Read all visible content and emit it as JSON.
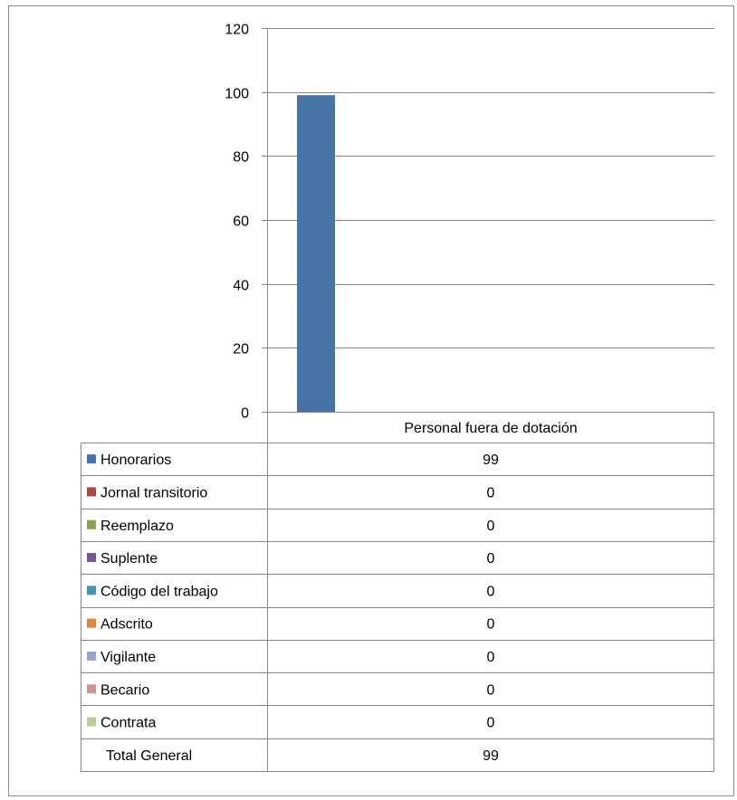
{
  "chart_data": {
    "type": "bar",
    "categories": [
      "Personal fuera de dotación"
    ],
    "series": [
      {
        "name": "Honorarios",
        "values": [
          99
        ],
        "color": "#4572A7"
      },
      {
        "name": "Jornal transitorio",
        "values": [
          0
        ],
        "color": "#AA4643"
      },
      {
        "name": "Reemplazo",
        "values": [
          0
        ],
        "color": "#89A54E"
      },
      {
        "name": "Suplente",
        "values": [
          0
        ],
        "color": "#71588F"
      },
      {
        "name": "Código del trabajo",
        "values": [
          0
        ],
        "color": "#4198AF"
      },
      {
        "name": "Adscrito",
        "values": [
          0
        ],
        "color": "#DB843D"
      },
      {
        "name": "Vigilante",
        "values": [
          0
        ],
        "color": "#93A9CF"
      },
      {
        "name": "Becario",
        "values": [
          0
        ],
        "color": "#D19392"
      },
      {
        "name": "Contrata",
        "values": [
          0
        ],
        "color": "#B9CD96"
      }
    ],
    "total_row": {
      "label": "Total General",
      "values": [
        99
      ]
    },
    "ylim": [
      0,
      120
    ],
    "yticks": [
      "0",
      "20",
      "40",
      "60",
      "80",
      "100",
      "120"
    ],
    "grid": true,
    "legend": "data-table"
  }
}
